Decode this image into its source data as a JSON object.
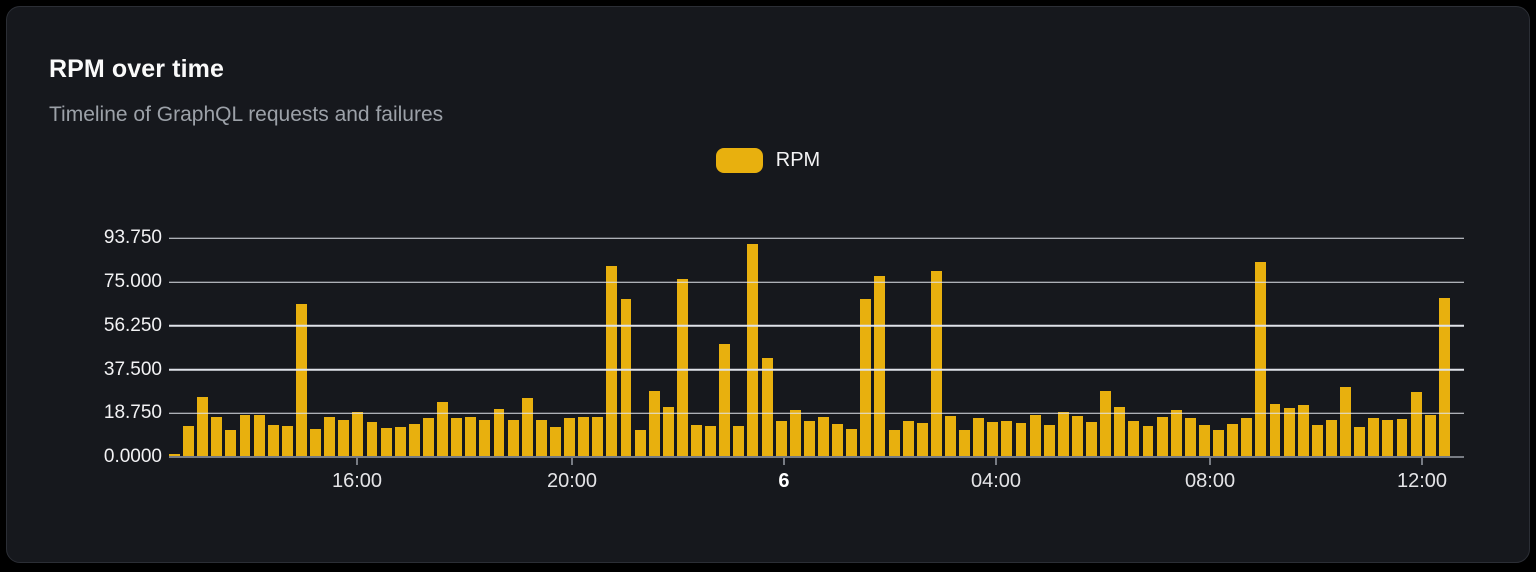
{
  "card": {
    "title": "RPM over time",
    "subtitle": "Timeline of GraphQL requests and failures"
  },
  "legend": {
    "label": "RPM",
    "swatch_color": "#e8b00e"
  },
  "colors": {
    "bar": "#e8b00e",
    "grid": "#dfe2e9",
    "axis": "#787c84",
    "card_background": "#16181d",
    "card_border": "#2b2e35"
  },
  "chart_data": {
    "type": "bar",
    "title": "RPM over time",
    "xlabel": "",
    "ylabel": "",
    "grid": true,
    "legend_position": "top-center",
    "ylim": [
      0,
      96.53
    ],
    "y_ticks": [
      "0.0000",
      "18.750",
      "37.500",
      "56.250",
      "75.000",
      "93.750"
    ],
    "y_tick_values": [
      0,
      18.75,
      37.5,
      56.25,
      75,
      93.75
    ],
    "x_ticks": [
      {
        "label": "16:00",
        "pos": 0.1452,
        "bold": false
      },
      {
        "label": "20:00",
        "pos": 0.3112,
        "bold": false
      },
      {
        "label": "6",
        "pos": 0.4749,
        "bold": true
      },
      {
        "label": "04:00",
        "pos": 0.6386,
        "bold": false
      },
      {
        "label": "08:00",
        "pos": 0.8039,
        "bold": false
      },
      {
        "label": "12:00",
        "pos": 0.9676,
        "bold": false
      }
    ],
    "series": [
      {
        "name": "RPM",
        "values": [
          1.3,
          13.2,
          25.9,
          17.3,
          11.7,
          18.1,
          18.1,
          13.8,
          13.1,
          65.7,
          12.1,
          17.1,
          15.9,
          19.2,
          15.2,
          12.4,
          12.8,
          14.2,
          16.6,
          23.5,
          16.8,
          17.1,
          15.9,
          20.6,
          15.9,
          25.3,
          15.9,
          12.8,
          16.8,
          17.1,
          17.1,
          82.1,
          67.8,
          11.8,
          28.4,
          21.6,
          76.5,
          13.9,
          13.1,
          48.6,
          13.2,
          91.3,
          42.6,
          15.3,
          20.2,
          15.6,
          17.3,
          14.2,
          12.1,
          67.8,
          77.7,
          11.6,
          15.6,
          14.5,
          80.0,
          17.8,
          11.6,
          16.8,
          14.9,
          15.6,
          14.5,
          18.2,
          13.9,
          19.2,
          17.5,
          14.9,
          28.4,
          21.3,
          15.6,
          13.2,
          17.1,
          20.2,
          16.8,
          13.9,
          11.8,
          14.2,
          16.6,
          83.8,
          22.7,
          20.9,
          22.4,
          13.9,
          15.9,
          30.1,
          12.8,
          16.6,
          15.9,
          16.3,
          28.0,
          18.0,
          68.3
        ]
      }
    ]
  }
}
